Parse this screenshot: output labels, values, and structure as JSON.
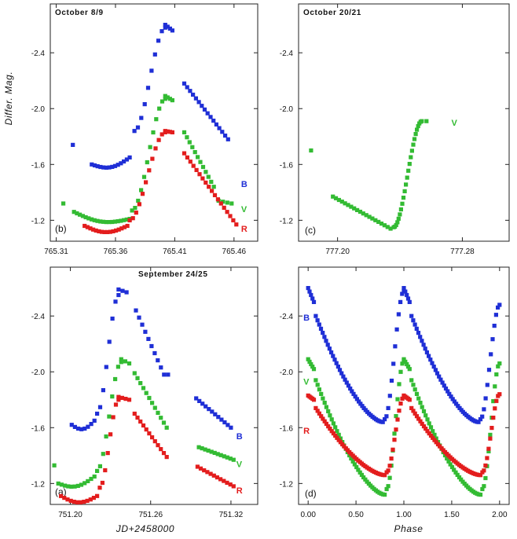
{
  "figure": {
    "ylabel": "Differ. Mag.",
    "xlabel_left": "JD+2458000",
    "xlabel_right": "Phase"
  },
  "colors": {
    "B": "#1f2fd6",
    "V": "#33bb33",
    "R": "#e31d1d"
  },
  "chart_data": [
    {
      "id": "b",
      "type": "scatter",
      "title": "October 8/9",
      "panel_label": "(b)",
      "xlabel": "",
      "ylabel": "Differ. Mag.",
      "xlim": [
        765.305,
        765.48
      ],
      "ylim": [
        -1.05,
        -2.75
      ],
      "xticks": [
        765.31,
        765.36,
        765.41,
        765.46
      ],
      "xtick_labels": [
        "765.31",
        "765.36",
        "765.41",
        "765.46"
      ],
      "yticks": [
        -2.4,
        -2.0,
        -1.6,
        -1.2
      ],
      "ytick_labels": [
        "-2.4",
        "-2.0",
        "-1.6",
        "-1.2"
      ],
      "band_labels": [
        {
          "band": "B",
          "text": "B",
          "x": 765.466,
          "y": -1.46
        },
        {
          "band": "V",
          "text": "V",
          "x": 765.466,
          "y": -1.28
        },
        {
          "band": "R",
          "text": "R",
          "x": 765.466,
          "y": -1.14
        }
      ],
      "series": [
        {
          "name": "B",
          "segments": [
            {
              "x": [
                765.324
              ],
              "y": [
                -1.74
              ]
            },
            {
              "x": [
                765.34,
                765.372
              ],
              "y": [
                -1.6,
                -1.65
              ],
              "shape": "dip",
              "n": 14
            },
            {
              "x": [
                765.376,
                765.402
              ],
              "y": [
                -1.84,
                -2.58
              ],
              "shape": "rise",
              "n": 10
            },
            {
              "x": [
                765.402,
                765.408
              ],
              "y": [
                -2.6,
                -2.56
              ],
              "shape": "linear",
              "n": 4
            },
            {
              "x": [
                765.418,
                765.455
              ],
              "y": [
                -2.18,
                -1.78
              ],
              "shape": "linear",
              "n": 16
            }
          ]
        },
        {
          "name": "V",
          "segments": [
            {
              "x": [
                765.316
              ],
              "y": [
                -1.32
              ]
            },
            {
              "x": [
                765.325,
                765.372
              ],
              "y": [
                -1.26,
                -1.21
              ],
              "shape": "dip",
              "n": 20
            },
            {
              "x": [
                765.374,
                765.402
              ],
              "y": [
                -1.27,
                -2.07
              ],
              "shape": "rise",
              "n": 12
            },
            {
              "x": [
                765.402,
                765.408
              ],
              "y": [
                -2.09,
                -2.06
              ],
              "shape": "linear",
              "n": 4
            },
            {
              "x": [
                765.418,
                765.443
              ],
              "y": [
                -1.83,
                -1.44
              ],
              "shape": "linear",
              "n": 12
            },
            {
              "x": [
                765.447,
                765.458
              ],
              "y": [
                -1.34,
                -1.32
              ],
              "shape": "linear",
              "n": 4
            }
          ]
        },
        {
          "name": "R",
          "segments": [
            {
              "x": [
                765.334,
                765.37
              ],
              "y": [
                -1.16,
                -1.16
              ],
              "shape": "dip",
              "n": 16
            },
            {
              "x": [
                765.372,
                765.402
              ],
              "y": [
                -1.2,
                -1.83
              ],
              "shape": "rise",
              "n": 12
            },
            {
              "x": [
                765.402,
                765.408
              ],
              "y": [
                -1.84,
                -1.83
              ],
              "shape": "linear",
              "n": 4
            },
            {
              "x": [
                765.418,
                765.462
              ],
              "y": [
                -1.68,
                -1.17
              ],
              "shape": "linear",
              "n": 18
            }
          ]
        }
      ]
    },
    {
      "id": "c",
      "type": "scatter",
      "title": "October 20/21",
      "panel_label": "(c)",
      "xlabel": "",
      "ylabel": "",
      "xlim": [
        777.175,
        777.31
      ],
      "ylim": [
        -1.05,
        -2.75
      ],
      "xticks": [
        777.2,
        777.28
      ],
      "xtick_labels": [
        "777.20",
        "777.28"
      ],
      "yticks": [
        -2.4,
        -2.0,
        -1.6,
        -1.2
      ],
      "ytick_labels": [
        "-2.4",
        "-2.0",
        "-1.6",
        "-1.2"
      ],
      "band_labels": [
        {
          "band": "V",
          "text": "V",
          "x": 777.273,
          "y": -1.9
        }
      ],
      "series": [
        {
          "name": "V",
          "segments": [
            {
              "x": [
                777.183
              ],
              "y": [
                -1.7
              ]
            },
            {
              "x": [
                777.197,
                777.234
              ],
              "y": [
                -1.37,
                -1.14
              ],
              "shape": "linear",
              "n": 20
            },
            {
              "x": [
                777.236,
                777.254
              ],
              "y": [
                -1.15,
                -1.91
              ],
              "shape": "rise",
              "n": 24
            },
            {
              "x": [
                777.257
              ],
              "y": [
                -1.91
              ]
            }
          ]
        }
      ]
    },
    {
      "id": "a",
      "type": "scatter",
      "title": "September 24/25",
      "panel_label": "(a)",
      "xlabel": "JD+2458000",
      "ylabel": "",
      "xlim": [
        751.185,
        751.34
      ],
      "ylim": [
        -1.05,
        -2.75
      ],
      "xticks": [
        751.2,
        751.26,
        751.32
      ],
      "xtick_labels": [
        "751.20",
        "751.26",
        "751.32"
      ],
      "yticks": [
        -2.4,
        -2.0,
        -1.6,
        -1.2
      ],
      "ytick_labels": [
        "-2.4",
        "-2.0",
        "-1.6",
        "-1.2"
      ],
      "band_labels": [
        {
          "band": "B",
          "text": "B",
          "x": 751.324,
          "y": -1.54
        },
        {
          "band": "V",
          "text": "V",
          "x": 751.324,
          "y": -1.34
        },
        {
          "band": "R",
          "text": "R",
          "x": 751.324,
          "y": -1.15
        }
      ],
      "series": [
        {
          "name": "B",
          "segments": [
            {
              "x": [
                751.201,
                751.218
              ],
              "y": [
                -1.62,
                -1.65
              ],
              "shape": "dip",
              "n": 8
            },
            {
              "x": [
                751.22,
                751.236
              ],
              "y": [
                -1.7,
                -2.55
              ],
              "shape": "rise",
              "n": 8
            },
            {
              "x": [
                751.236,
                751.242
              ],
              "y": [
                -2.59,
                -2.57
              ],
              "shape": "linear",
              "n": 3
            },
            {
              "x": [
                751.249,
                751.27
              ],
              "y": [
                -2.44,
                -1.98
              ],
              "shape": "linear",
              "n": 10
            },
            {
              "x": [
                751.273
              ],
              "y": [
                -1.98
              ]
            },
            {
              "x": [
                751.294,
                751.32
              ],
              "y": [
                -1.81,
                -1.6
              ],
              "shape": "linear",
              "n": 12
            }
          ]
        },
        {
          "name": "V",
          "segments": [
            {
              "x": [
                751.188
              ],
              "y": [
                -1.33
              ]
            },
            {
              "x": [
                751.191,
                751.218
              ],
              "y": [
                -1.2,
                -1.25
              ],
              "shape": "dip",
              "n": 12
            },
            {
              "x": [
                751.22,
                751.238
              ],
              "y": [
                -1.29,
                -2.07
              ],
              "shape": "rise",
              "n": 9
            },
            {
              "x": [
                751.238,
                751.244
              ],
              "y": [
                -2.09,
                -2.06
              ],
              "shape": "linear",
              "n": 3
            },
            {
              "x": [
                751.248,
                751.272
              ],
              "y": [
                -1.99,
                -1.6
              ],
              "shape": "linear",
              "n": 12
            },
            {
              "x": [
                751.296,
                751.322
              ],
              "y": [
                -1.46,
                -1.37
              ],
              "shape": "linear",
              "n": 12
            }
          ]
        },
        {
          "name": "R",
          "segments": [
            {
              "x": [
                751.193,
                751.22
              ],
              "y": [
                -1.11,
                -1.11
              ],
              "shape": "dip",
              "n": 12
            },
            {
              "x": [
                751.222,
                751.236
              ],
              "y": [
                -1.17,
                -1.8
              ],
              "shape": "rise",
              "n": 8
            },
            {
              "x": [
                751.236,
                751.244
              ],
              "y": [
                -1.82,
                -1.8
              ],
              "shape": "linear",
              "n": 4
            },
            {
              "x": [
                751.248,
                751.272
              ],
              "y": [
                -1.7,
                -1.39
              ],
              "shape": "linear",
              "n": 12
            },
            {
              "x": [
                751.295,
                751.322
              ],
              "y": [
                -1.32,
                -1.18
              ],
              "shape": "linear",
              "n": 12
            }
          ]
        }
      ]
    },
    {
      "id": "d",
      "type": "scatter",
      "title": "",
      "panel_label": "(d)",
      "xlabel": "Phase",
      "ylabel": "",
      "xlim": [
        -0.1,
        2.1
      ],
      "ylim": [
        -1.05,
        -2.75
      ],
      "xticks": [
        0,
        0.5,
        1,
        1.5,
        2
      ],
      "xtick_labels": [
        "0.00",
        "0.50",
        "1.00",
        "1.50",
        "2.00"
      ],
      "yticks": [
        -2.4,
        -2.0,
        -1.6,
        -1.2
      ],
      "ytick_labels": [
        "-2.4",
        "-2.0",
        "-1.6",
        "-1.2"
      ],
      "band_labels": [
        {
          "band": "B",
          "text": "B",
          "x": -0.05,
          "y": -2.39
        },
        {
          "band": "V",
          "text": "V",
          "x": -0.05,
          "y": -1.93
        },
        {
          "band": "R",
          "text": "R",
          "x": -0.05,
          "y": -1.58
        }
      ],
      "series": [
        {
          "name": "B",
          "segments": [
            {
              "x": [
                0.0,
                0.06
              ],
              "y": [
                -2.6,
                -2.5
              ],
              "shape": "linear",
              "n": 5
            },
            {
              "x": [
                0.08,
                0.78
              ],
              "y": [
                -2.4,
                -1.64
              ],
              "shape": "decline",
              "n": 40
            },
            {
              "x": [
                0.8,
                1.0
              ],
              "y": [
                -1.66,
                -2.58
              ],
              "shape": "rise",
              "n": 12
            },
            {
              "x": [
                1.0,
                1.06
              ],
              "y": [
                -2.6,
                -2.5
              ],
              "shape": "linear",
              "n": 5
            },
            {
              "x": [
                1.08,
                1.78
              ],
              "y": [
                -2.4,
                -1.64
              ],
              "shape": "decline",
              "n": 40
            },
            {
              "x": [
                1.8,
                2.0
              ],
              "y": [
                -1.66,
                -2.48
              ],
              "shape": "rise",
              "n": 12
            }
          ]
        },
        {
          "name": "V",
          "segments": [
            {
              "x": [
                0.0,
                0.06
              ],
              "y": [
                -2.09,
                -2.02
              ],
              "shape": "linear",
              "n": 5
            },
            {
              "x": [
                0.08,
                0.8
              ],
              "y": [
                -1.94,
                -1.12
              ],
              "shape": "decline",
              "n": 40
            },
            {
              "x": [
                0.82,
                1.0
              ],
              "y": [
                -1.16,
                -2.08
              ],
              "shape": "rise",
              "n": 12
            },
            {
              "x": [
                1.0,
                1.06
              ],
              "y": [
                -2.09,
                -2.02
              ],
              "shape": "linear",
              "n": 5
            },
            {
              "x": [
                1.08,
                1.8
              ],
              "y": [
                -1.94,
                -1.12
              ],
              "shape": "decline",
              "n": 40
            },
            {
              "x": [
                1.82,
                2.0
              ],
              "y": [
                -1.16,
                -2.06
              ],
              "shape": "rise",
              "n": 12
            }
          ]
        },
        {
          "name": "R",
          "segments": [
            {
              "x": [
                0.0,
                0.06
              ],
              "y": [
                -1.83,
                -1.8
              ],
              "shape": "linear",
              "n": 5
            },
            {
              "x": [
                0.08,
                0.8
              ],
              "y": [
                -1.74,
                -1.26
              ],
              "shape": "decline",
              "n": 40
            },
            {
              "x": [
                0.82,
                1.0
              ],
              "y": [
                -1.28,
                -1.82
              ],
              "shape": "rise",
              "n": 12
            },
            {
              "x": [
                1.0,
                1.06
              ],
              "y": [
                -1.83,
                -1.8
              ],
              "shape": "linear",
              "n": 5
            },
            {
              "x": [
                1.08,
                1.8
              ],
              "y": [
                -1.74,
                -1.26
              ],
              "shape": "decline",
              "n": 40
            },
            {
              "x": [
                1.82,
                2.0
              ],
              "y": [
                -1.28,
                -1.84
              ],
              "shape": "rise",
              "n": 12
            }
          ]
        }
      ]
    }
  ]
}
